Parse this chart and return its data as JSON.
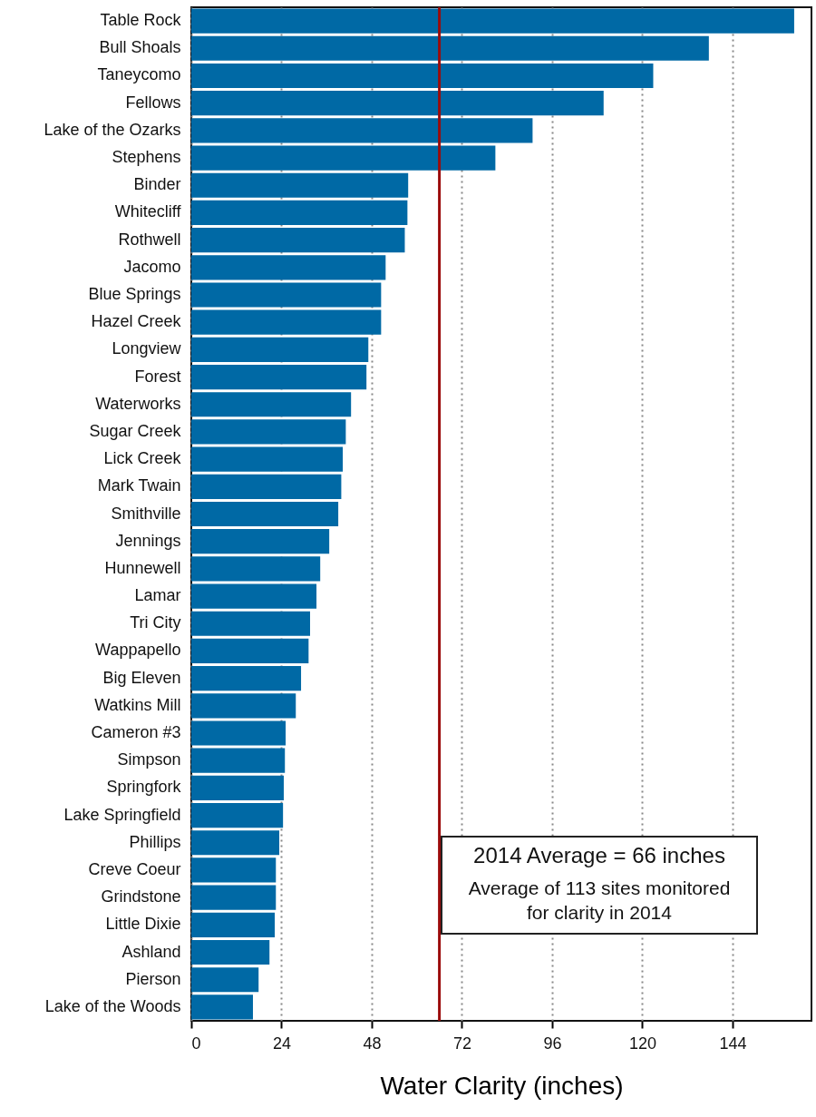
{
  "chart_data": {
    "type": "bar",
    "orientation": "horizontal",
    "xlabel": "Water Clarity (inches)",
    "categories": [
      "Table Rock",
      "Bull Shoals",
      "Taneycomo",
      "Fellows",
      "Lake of the Ozarks",
      "Stephens",
      "Binder",
      "Whitecliff",
      "Rothwell",
      "Jacomo",
      "Blue Springs",
      "Hazel Creek",
      "Longview",
      "Forest",
      "Waterworks",
      "Sugar Creek",
      "Lick Creek",
      "Mark Twain",
      "Smithville",
      "Jennings",
      "Hunnewell",
      "Lamar",
      "Tri City",
      "Wappapello",
      "Big Eleven",
      "Watkins Mill",
      "Cameron #3",
      "Simpson",
      "Springfork",
      "Lake Springfield",
      "Phillips",
      "Creve Coeur",
      "Grindstone",
      "Little Dixie",
      "Ashland",
      "Pierson",
      "Lake of the Woods"
    ],
    "values": [
      160.4,
      137.7,
      122.9,
      109.7,
      90.8,
      80.9,
      57.7,
      57.5,
      56.8,
      51.7,
      50.5,
      50.5,
      47.1,
      46.6,
      42.5,
      41.1,
      40.3,
      39.9,
      39.1,
      36.7,
      34.3,
      33.3,
      31.6,
      31.2,
      29.2,
      27.8,
      25.1,
      24.9,
      24.6,
      24.4,
      23.4,
      22.5,
      22.5,
      22.2,
      20.8,
      17.9,
      16.4
    ],
    "color": "#0069a5",
    "xlim": [
      0,
      165
    ],
    "xticks": [
      0,
      24,
      48,
      72,
      96,
      120,
      144
    ],
    "grid": "x",
    "ref_lines": [
      {
        "axis": "x",
        "value": 66,
        "label": "2014 Average = 66 inches",
        "color": "#9b0c0c"
      }
    ],
    "annotations": [
      "Average of 113 sites monitored for clarity in 2014"
    ]
  }
}
